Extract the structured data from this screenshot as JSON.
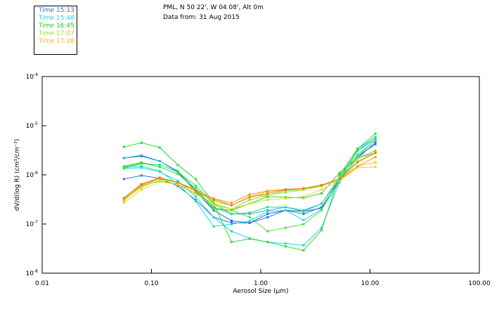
{
  "title": {
    "line1": "PML, N 50 22', W 04 08', Alt 0m",
    "line2": "Data from: 31 Aug 2015"
  },
  "legend": [
    {
      "label": "Time 15:13",
      "color": "#1e78dc"
    },
    {
      "label": "Time 15:48",
      "color": "#1ed2e6"
    },
    {
      "label": "Time 16:45",
      "color": "#28c81e"
    },
    {
      "label": "Time 17:07",
      "color": "#a0dc1e"
    },
    {
      "label": "Time 17:28",
      "color": "#f0b41e"
    }
  ],
  "chart_data": {
    "type": "line",
    "title": "PML, N 50 22', W 04 08', Alt 0m — Data from: 31 Aug 2015",
    "xlabel": "Aerosol Size (µm)",
    "ylabel": "dV/d(log R) (cm³/cm⁻³)",
    "xscale": "log",
    "yscale": "log",
    "xlim": [
      0.01,
      100
    ],
    "ylim": [
      1e-08,
      0.0001
    ],
    "x_ticks": [
      {
        "value": 0.01,
        "label": "0.01"
      },
      {
        "value": 0.1,
        "label": "0.10"
      },
      {
        "value": 1,
        "label": "1.00"
      },
      {
        "value": 10,
        "label": "10.00"
      },
      {
        "value": 100,
        "label": "100.00"
      }
    ],
    "y_ticks": [
      {
        "value": 0.0001,
        "base": "10",
        "exp": "-4"
      },
      {
        "value": 1e-05,
        "base": "10",
        "exp": "-5"
      },
      {
        "value": 1e-06,
        "base": "10",
        "exp": "-6"
      },
      {
        "value": 1e-07,
        "base": "10",
        "exp": "-7"
      },
      {
        "value": 1e-08,
        "base": "10",
        "exp": "-8"
      }
    ],
    "grid": false,
    "legend_position": "top-left",
    "x": [
      0.056,
      0.081,
      0.119,
      0.174,
      0.254,
      0.371,
      0.541,
      0.791,
      1.155,
      1.687,
      2.465,
      3.6,
      5.26,
      7.68,
      11.2
    ],
    "series": [
      {
        "name": "s1",
        "color": "#1e64dc",
        "values": [
          2.2e-06,
          2.4e-06,
          1.9e-06,
          1.15e-06,
          4.6e-07,
          1.9e-07,
          1.16e-07,
          1.05e-07,
          1.6e-07,
          1.9e-07,
          1.8e-07,
          2.1e-07,
          8.2e-07,
          2.2e-06,
          4.5e-06
        ]
      },
      {
        "name": "s2",
        "color": "#2878e6",
        "values": [
          8.2e-07,
          9.7e-07,
          8.5e-07,
          5.9e-07,
          3.1e-07,
          1.37e-07,
          1.05e-07,
          1.05e-07,
          1.37e-07,
          1.9e-07,
          1.6e-07,
          2.2e-07,
          7.6e-07,
          2.4e-06,
          4.2e-06
        ]
      },
      {
        "name": "s3",
        "color": "#1eb4e6",
        "values": [
          2.2e-06,
          2.5e-06,
          1.9e-06,
          1.2e-06,
          5e-07,
          2.2e-07,
          1.6e-07,
          1.6e-07,
          1.9e-07,
          2.2e-07,
          1.9e-07,
          2.6e-07,
          9e-07,
          3.1e-06,
          5.3e-06
        ]
      },
      {
        "name": "s4",
        "color": "#1ed2e6",
        "values": [
          1.35e-06,
          1.4e-06,
          1.15e-06,
          7.6e-07,
          3.6e-07,
          1.37e-07,
          7.1e-08,
          5.1e-08,
          4.3e-08,
          4e-08,
          3.7e-08,
          8.4e-08,
          7.3e-07,
          3.4e-06,
          5.9e-06
        ]
      },
      {
        "name": "s5",
        "color": "#1edcc8",
        "values": [
          1.45e-06,
          1.5e-06,
          1.2e-06,
          6.5e-07,
          2.9e-07,
          8.9e-08,
          9.9e-08,
          1.16e-07,
          1.8e-07,
          1.9e-07,
          1.2e-07,
          2e-07,
          7e-07,
          2.4e-06,
          5e-06
        ]
      },
      {
        "name": "s6",
        "color": "#28dc28",
        "values": [
          3.7e-06,
          4.5e-06,
          3.6e-06,
          1.6e-06,
          8.2e-07,
          2.6e-07,
          4.3e-08,
          5e-08,
          4.3e-08,
          3.5e-08,
          2.9e-08,
          7.5e-08,
          1e-06,
          3.4e-06,
          6.9e-06
        ]
      },
      {
        "name": "s7",
        "color": "#1edc78",
        "values": [
          1.35e-06,
          1.7e-06,
          1.6e-06,
          1.15e-06,
          6e-07,
          2.6e-07,
          1.6e-07,
          1.7e-07,
          2.2e-07,
          2.2e-07,
          1.8e-07,
          2.6e-07,
          8.2e-07,
          3.1e-06,
          5.9e-06
        ]
      },
      {
        "name": "s8",
        "color": "#3cc83c",
        "values": [
          1.45e-06,
          1.75e-06,
          1.45e-06,
          1.05e-06,
          5e-07,
          2e-07,
          1.9e-07,
          2.6e-07,
          3.6e-07,
          3.5e-07,
          3.4e-07,
          4.2e-07,
          1.1e-06,
          2.2e-06,
          2.8e-06
        ]
      },
      {
        "name": "s9",
        "color": "#78dc1e",
        "values": [
          3e-07,
          6e-07,
          7.5e-07,
          6.5e-07,
          4.2e-07,
          2.6e-07,
          2e-07,
          3.1e-07,
          3.8e-07,
          4.8e-07,
          5e-07,
          5.9e-07,
          8.2e-07,
          2.2e-06,
          3.1e-06
        ]
      },
      {
        "name": "s10",
        "color": "#a0e61e",
        "values": [
          3.1e-07,
          5.6e-07,
          8e-07,
          7e-07,
          5e-07,
          2.8e-07,
          2.4e-07,
          3.6e-07,
          3.9e-07,
          4.4e-07,
          5e-07,
          6.2e-07,
          8.2e-07,
          1.9e-06,
          2.8e-06
        ]
      },
      {
        "name": "s11",
        "color": "#dcdc1e",
        "values": [
          2.7e-07,
          5e-07,
          7.3e-07,
          6.3e-07,
          4.1e-07,
          2.4e-07,
          2e-07,
          2.6e-07,
          3.1e-07,
          3.3e-07,
          3.6e-07,
          5e-07,
          7.6e-07,
          1.4e-06,
          1.45e-06
        ]
      },
      {
        "name": "s12",
        "color": "#f0c81e",
        "values": [
          3.2e-07,
          5.6e-07,
          8.8e-07,
          7e-07,
          5e-07,
          3.3e-07,
          2.4e-07,
          3.6e-07,
          4.6e-07,
          5e-07,
          5.3e-07,
          6.2e-07,
          7.6e-07,
          1.5e-06,
          1.8e-06
        ]
      },
      {
        "name": "s13",
        "color": "#f0961e",
        "values": [
          3.3e-07,
          6.2e-07,
          8.5e-07,
          7e-07,
          5e-07,
          3.3e-07,
          2.7e-07,
          4e-07,
          4.7e-07,
          5.1e-07,
          5.3e-07,
          6.2e-07,
          8.2e-07,
          1.5e-06,
          2.3e-06
        ]
      },
      {
        "name": "s14",
        "color": "#f07814",
        "values": [
          3.4e-07,
          6.5e-07,
          8.8e-07,
          7e-07,
          4.6e-07,
          3.1e-07,
          2.4e-07,
          3.5e-07,
          4.2e-07,
          5e-07,
          5.3e-07,
          6.2e-07,
          8.2e-07,
          1.8e-06,
          2.8e-06
        ]
      },
      {
        "name": "s15",
        "color": "#50dc3c",
        "values": [
          1.5e-06,
          1.8e-06,
          1.45e-06,
          1.05e-06,
          5.3e-07,
          2.1e-07,
          1.9e-07,
          1.37e-07,
          7.1e-08,
          8.4e-08,
          9.9e-08,
          1.9e-07,
          9e-07,
          2.6e-06,
          5e-06
        ]
      }
    ]
  }
}
